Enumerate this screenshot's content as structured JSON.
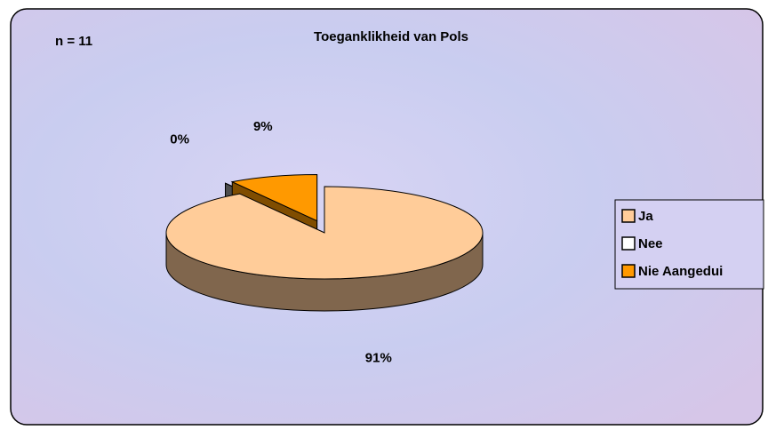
{
  "chart_data": {
    "type": "pie3d",
    "title": "Toeganklikheid van Pols",
    "annotation": "n = 11",
    "categories": [
      "Ja",
      "Nee",
      "Nie Aangedui"
    ],
    "values": [
      91,
      0,
      9
    ],
    "value_labels": [
      "91%",
      "0%",
      "9%"
    ],
    "colors": [
      "#ffcc99",
      "#ffffff",
      "#ff9900"
    ],
    "legend": "right"
  }
}
